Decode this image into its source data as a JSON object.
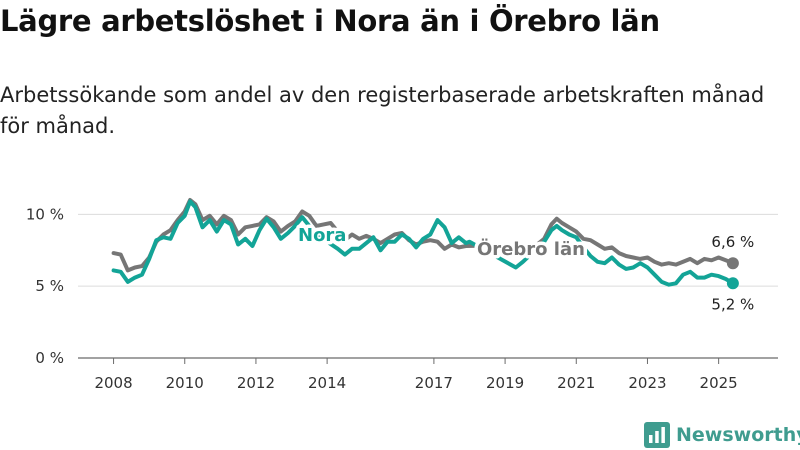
{
  "title": "Lägre arbetslöshet i Nora än i Örebro län",
  "subtitle": "Arbetssökande som andel av den registerbaserade arbetskraften månad för månad.",
  "brand": {
    "name": "Newsworthy",
    "color": "#3f9c8f"
  },
  "chart_data": {
    "type": "line",
    "x_ticks": [
      "2008",
      "2010",
      "2012",
      "2014",
      "2017",
      "2019",
      "2021",
      "2023",
      "2025"
    ],
    "y_ticks": [
      "0 %",
      "5 %",
      "10 %"
    ],
    "ylim": [
      0,
      11
    ],
    "xlim": [
      2007.9,
      2025.6
    ],
    "grid": true,
    "series": [
      {
        "name": "Örebro län",
        "color": "#767676",
        "end_label": "6,6 %",
        "points": [
          [
            2008.0,
            7.3
          ],
          [
            2008.2,
            7.2
          ],
          [
            2008.4,
            6.1
          ],
          [
            2008.6,
            6.3
          ],
          [
            2008.8,
            6.4
          ],
          [
            2009.0,
            7.0
          ],
          [
            2009.2,
            8.1
          ],
          [
            2009.4,
            8.6
          ],
          [
            2009.6,
            8.9
          ],
          [
            2009.8,
            9.6
          ],
          [
            2010.0,
            10.2
          ],
          [
            2010.15,
            11.0
          ],
          [
            2010.3,
            10.7
          ],
          [
            2010.5,
            9.6
          ],
          [
            2010.7,
            9.9
          ],
          [
            2010.9,
            9.3
          ],
          [
            2011.1,
            9.9
          ],
          [
            2011.3,
            9.6
          ],
          [
            2011.5,
            8.6
          ],
          [
            2011.7,
            9.1
          ],
          [
            2011.9,
            9.2
          ],
          [
            2012.1,
            9.3
          ],
          [
            2012.3,
            9.8
          ],
          [
            2012.5,
            9.5
          ],
          [
            2012.7,
            8.8
          ],
          [
            2012.9,
            9.2
          ],
          [
            2013.1,
            9.5
          ],
          [
            2013.3,
            10.2
          ],
          [
            2013.5,
            9.9
          ],
          [
            2013.7,
            9.2
          ],
          [
            2013.9,
            9.3
          ],
          [
            2014.1,
            9.4
          ],
          [
            2014.3,
            8.8
          ],
          [
            2014.5,
            8.2
          ],
          [
            2014.7,
            8.6
          ],
          [
            2014.9,
            8.3
          ],
          [
            2015.1,
            8.5
          ],
          [
            2015.3,
            8.3
          ],
          [
            2015.5,
            8.0
          ],
          [
            2015.7,
            8.3
          ],
          [
            2015.9,
            8.6
          ],
          [
            2016.1,
            8.7
          ],
          [
            2016.3,
            8.2
          ],
          [
            2016.5,
            7.9
          ],
          [
            2016.7,
            8.1
          ],
          [
            2016.9,
            8.2
          ],
          [
            2017.1,
            8.1
          ],
          [
            2017.3,
            7.6
          ],
          [
            2017.5,
            7.9
          ],
          [
            2017.7,
            7.7
          ],
          [
            2017.9,
            7.8
          ],
          [
            2019.9,
            7.9
          ],
          [
            2020.1,
            8.3
          ],
          [
            2020.3,
            9.3
          ],
          [
            2020.45,
            9.7
          ],
          [
            2020.6,
            9.4
          ],
          [
            2020.8,
            9.1
          ],
          [
            2021.0,
            8.8
          ],
          [
            2021.2,
            8.3
          ],
          [
            2021.4,
            8.2
          ],
          [
            2021.6,
            7.9
          ],
          [
            2021.8,
            7.6
          ],
          [
            2022.0,
            7.7
          ],
          [
            2022.2,
            7.3
          ],
          [
            2022.4,
            7.1
          ],
          [
            2022.6,
            7.0
          ],
          [
            2022.8,
            6.9
          ],
          [
            2023.0,
            7.0
          ],
          [
            2023.2,
            6.7
          ],
          [
            2023.4,
            6.5
          ],
          [
            2023.6,
            6.6
          ],
          [
            2023.8,
            6.5
          ],
          [
            2024.0,
            6.7
          ],
          [
            2024.2,
            6.9
          ],
          [
            2024.4,
            6.6
          ],
          [
            2024.6,
            6.9
          ],
          [
            2024.8,
            6.8
          ],
          [
            2025.0,
            7.0
          ],
          [
            2025.2,
            6.8
          ],
          [
            2025.4,
            6.6
          ]
        ]
      },
      {
        "name": "Nora",
        "color": "#13a497",
        "end_label": "5,2 %",
        "points": [
          [
            2008.0,
            6.1
          ],
          [
            2008.2,
            6.0
          ],
          [
            2008.4,
            5.3
          ],
          [
            2008.6,
            5.6
          ],
          [
            2008.8,
            5.8
          ],
          [
            2009.0,
            6.9
          ],
          [
            2009.2,
            8.2
          ],
          [
            2009.4,
            8.4
          ],
          [
            2009.6,
            8.3
          ],
          [
            2009.8,
            9.4
          ],
          [
            2010.0,
            9.9
          ],
          [
            2010.15,
            10.9
          ],
          [
            2010.3,
            10.5
          ],
          [
            2010.5,
            9.1
          ],
          [
            2010.7,
            9.6
          ],
          [
            2010.9,
            8.8
          ],
          [
            2011.1,
            9.6
          ],
          [
            2011.3,
            9.3
          ],
          [
            2011.5,
            7.9
          ],
          [
            2011.7,
            8.3
          ],
          [
            2011.9,
            7.8
          ],
          [
            2012.1,
            8.9
          ],
          [
            2012.3,
            9.7
          ],
          [
            2012.5,
            9.1
          ],
          [
            2012.7,
            8.3
          ],
          [
            2012.9,
            8.7
          ],
          [
            2013.1,
            9.2
          ],
          [
            2013.3,
            9.8
          ],
          [
            2013.5,
            9.2
          ],
          [
            2013.7,
            8.6
          ],
          [
            2014.3,
            7.6
          ],
          [
            2014.5,
            7.2
          ],
          [
            2014.7,
            7.6
          ],
          [
            2014.9,
            7.6
          ],
          [
            2015.1,
            8.0
          ],
          [
            2015.3,
            8.4
          ],
          [
            2015.5,
            7.5
          ],
          [
            2015.7,
            8.1
          ],
          [
            2015.9,
            8.1
          ],
          [
            2016.1,
            8.6
          ],
          [
            2016.3,
            8.3
          ],
          [
            2016.5,
            7.7
          ],
          [
            2016.7,
            8.3
          ],
          [
            2016.9,
            8.6
          ],
          [
            2017.1,
            9.6
          ],
          [
            2017.3,
            9.1
          ],
          [
            2017.5,
            8.0
          ],
          [
            2017.7,
            8.4
          ],
          [
            2017.9,
            8.0
          ],
          [
            2018.0,
            8.1
          ],
          [
            2019.3,
            6.3
          ],
          [
            2019.5,
            6.7
          ],
          [
            2020.1,
            8.1
          ],
          [
            2020.3,
            8.9
          ],
          [
            2020.45,
            9.2
          ],
          [
            2020.6,
            8.9
          ],
          [
            2020.8,
            8.6
          ],
          [
            2021.0,
            8.4
          ],
          [
            2021.2,
            7.7
          ],
          [
            2021.4,
            7.1
          ],
          [
            2021.6,
            6.7
          ],
          [
            2021.8,
            6.6
          ],
          [
            2022.0,
            7.0
          ],
          [
            2022.2,
            6.5
          ],
          [
            2022.4,
            6.2
          ],
          [
            2022.6,
            6.3
          ],
          [
            2022.8,
            6.6
          ],
          [
            2023.0,
            6.3
          ],
          [
            2023.2,
            5.8
          ],
          [
            2023.4,
            5.3
          ],
          [
            2023.6,
            5.1
          ],
          [
            2023.8,
            5.2
          ],
          [
            2024.0,
            5.8
          ],
          [
            2024.2,
            6.0
          ],
          [
            2024.4,
            5.6
          ],
          [
            2024.6,
            5.6
          ],
          [
            2024.8,
            5.8
          ],
          [
            2025.0,
            5.7
          ],
          [
            2025.2,
            5.5
          ],
          [
            2025.4,
            5.2
          ]
        ]
      }
    ]
  }
}
